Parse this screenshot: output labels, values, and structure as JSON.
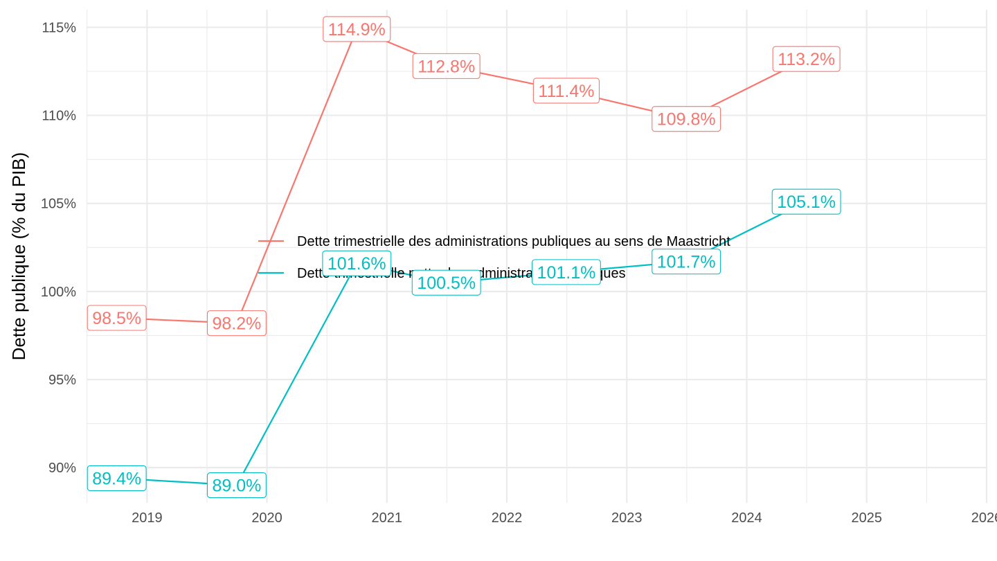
{
  "chart_data": {
    "type": "line",
    "title": "",
    "xlabel": "",
    "ylabel": "Dette publique (% du PIB)",
    "x_ticks": [
      "2019",
      "2020",
      "2021",
      "2022",
      "2023",
      "2024",
      "2025",
      "2026"
    ],
    "y_ticks": [
      "90%",
      "95%",
      "100%",
      "105%",
      "110%",
      "115%"
    ],
    "xlim": [
      "2018-07-01",
      "2026-01-01"
    ],
    "ylim": [
      88,
      116
    ],
    "grid": true,
    "legend_position": "center",
    "x": [
      "2018-10-01",
      "2019-10-01",
      "2020-10-01",
      "2021-07-01",
      "2022-07-01",
      "2023-07-01",
      "2024-07-01"
    ],
    "series": [
      {
        "name": "Dette trimestrielle des administrations publiques au sens de Maastricht",
        "color": "#F8766D",
        "values": [
          98.5,
          98.2,
          114.9,
          112.8,
          111.4,
          109.8,
          113.2
        ],
        "labels": [
          "98.5%",
          "98.2%",
          "114.9%",
          "112.8%",
          "111.4%",
          "109.8%",
          "113.2%"
        ]
      },
      {
        "name": "Dette trimestrielle nette des administrations publiques",
        "color": "#00BFC4",
        "values": [
          89.4,
          89.0,
          101.6,
          100.5,
          101.1,
          101.7,
          105.1
        ],
        "labels": [
          "89.4%",
          "89.0%",
          "101.6%",
          "100.5%",
          "101.1%",
          "101.7%",
          "105.1%"
        ]
      }
    ]
  }
}
